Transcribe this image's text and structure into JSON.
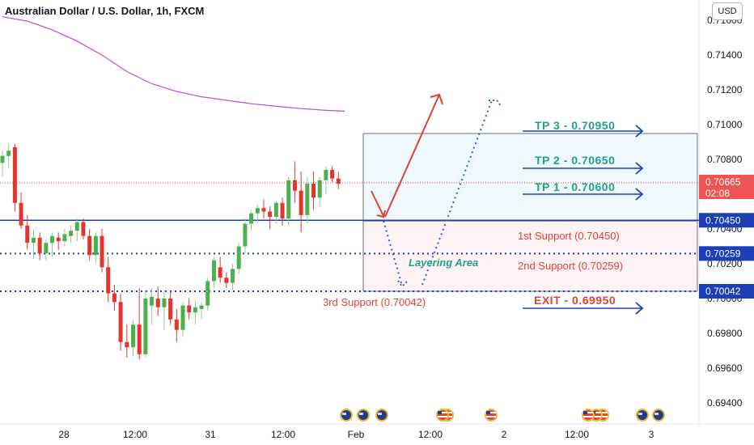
{
  "window": {
    "title": "Australian Dollar / U.S. Dollar, 1h, FXCM",
    "currency_button": "USD"
  },
  "chart_data": {
    "type": "candlestick",
    "title": "Australian Dollar / U.S. Dollar, 1h, FXCM",
    "y_ticks": [
      "0.71600",
      "0.71400",
      "0.71200",
      "0.71000",
      "0.70800",
      "0.70600",
      "0.70400",
      "0.70200",
      "0.70000",
      "0.69800",
      "0.69600",
      "0.69400"
    ],
    "ylim": [
      0.6925,
      0.7165
    ],
    "x_ticks": [
      "28",
      "12:00",
      "31",
      "12:00",
      "Feb",
      "12:00",
      "2",
      "12:00",
      "3"
    ],
    "price_tag": {
      "value": "0.70665",
      "timer": "02:08"
    },
    "levels": [
      {
        "name": "1st Support",
        "label": "1st Support (0.70450)",
        "value": 0.7045,
        "tag": "0.70450",
        "style": "solid"
      },
      {
        "name": "2nd Support",
        "label": "2nd Support (0.70259)",
        "value": 0.70259,
        "tag": "0.70259",
        "style": "dotted"
      },
      {
        "name": "3rd Support",
        "label": "3rd Support (0.70042)",
        "value": 0.70042,
        "tag": "0.70042",
        "style": "dotted"
      }
    ],
    "targets": [
      {
        "label": "TP 3 - 0.70950",
        "value": 0.7095
      },
      {
        "label": "TP 2 - 0.70650",
        "value": 0.7065
      },
      {
        "label": "TP 1 - 0.70600",
        "value": 0.706
      }
    ],
    "exit": {
      "label": "EXIT - 0.69950",
      "value": 0.6995
    },
    "zone_label": "Layering Area",
    "candles": [
      {
        "o": 0.7078,
        "h": 0.7085,
        "l": 0.707,
        "c": 0.7082
      },
      {
        "o": 0.7082,
        "h": 0.7089,
        "l": 0.7075,
        "c": 0.7085
      },
      {
        "o": 0.7087,
        "h": 0.7089,
        "l": 0.705,
        "c": 0.7055
      },
      {
        "o": 0.7055,
        "h": 0.7061,
        "l": 0.704,
        "c": 0.7042
      },
      {
        "o": 0.7042,
        "h": 0.7048,
        "l": 0.7028,
        "c": 0.7032
      },
      {
        "o": 0.7032,
        "h": 0.704,
        "l": 0.7023,
        "c": 0.7035
      },
      {
        "o": 0.7035,
        "h": 0.7038,
        "l": 0.7022,
        "c": 0.7026
      },
      {
        "o": 0.7026,
        "h": 0.7034,
        "l": 0.7022,
        "c": 0.7032
      },
      {
        "o": 0.7032,
        "h": 0.7038,
        "l": 0.7024,
        "c": 0.7036
      },
      {
        "o": 0.7035,
        "h": 0.7038,
        "l": 0.7028,
        "c": 0.7033
      },
      {
        "o": 0.7033,
        "h": 0.704,
        "l": 0.703,
        "c": 0.7037
      },
      {
        "o": 0.7036,
        "h": 0.7042,
        "l": 0.7032,
        "c": 0.7039
      },
      {
        "o": 0.7039,
        "h": 0.7046,
        "l": 0.7033,
        "c": 0.7044
      },
      {
        "o": 0.7044,
        "h": 0.7046,
        "l": 0.7034,
        "c": 0.7036
      },
      {
        "o": 0.7036,
        "h": 0.704,
        "l": 0.7022,
        "c": 0.7025
      },
      {
        "o": 0.7025,
        "h": 0.7038,
        "l": 0.702,
        "c": 0.7036
      },
      {
        "o": 0.7036,
        "h": 0.704,
        "l": 0.7015,
        "c": 0.7018
      },
      {
        "o": 0.7018,
        "h": 0.7024,
        "l": 0.6998,
        "c": 0.7003
      },
      {
        "o": 0.7003,
        "h": 0.7008,
        "l": 0.6993,
        "c": 0.6998
      },
      {
        "o": 0.6998,
        "h": 0.7003,
        "l": 0.697,
        "c": 0.6975
      },
      {
        "o": 0.6975,
        "h": 0.6985,
        "l": 0.6966,
        "c": 0.6972
      },
      {
        "o": 0.6972,
        "h": 0.6988,
        "l": 0.6967,
        "c": 0.6985
      },
      {
        "o": 0.6985,
        "h": 0.7006,
        "l": 0.6965,
        "c": 0.6968
      },
      {
        "o": 0.6968,
        "h": 0.7005,
        "l": 0.6966,
        "c": 0.7
      },
      {
        "o": 0.6996,
        "h": 0.7006,
        "l": 0.6985,
        "c": 0.7001
      },
      {
        "o": 0.7,
        "h": 0.7007,
        "l": 0.699,
        "c": 0.6995
      },
      {
        "o": 0.6995,
        "h": 0.7005,
        "l": 0.6982,
        "c": 0.7
      },
      {
        "o": 0.7,
        "h": 0.7004,
        "l": 0.6985,
        "c": 0.6988
      },
      {
        "o": 0.6988,
        "h": 0.6994,
        "l": 0.6975,
        "c": 0.6982
      },
      {
        "o": 0.6982,
        "h": 0.6998,
        "l": 0.6978,
        "c": 0.6996
      },
      {
        "o": 0.6996,
        "h": 0.7,
        "l": 0.6988,
        "c": 0.6992
      },
      {
        "o": 0.6992,
        "h": 0.6999,
        "l": 0.6985,
        "c": 0.6995
      },
      {
        "o": 0.6994,
        "h": 0.6998,
        "l": 0.6988,
        "c": 0.6996
      },
      {
        "o": 0.6996,
        "h": 0.7012,
        "l": 0.6993,
        "c": 0.701
      },
      {
        "o": 0.701,
        "h": 0.7024,
        "l": 0.7006,
        "c": 0.7022
      },
      {
        "o": 0.7018,
        "h": 0.7024,
        "l": 0.7009,
        "c": 0.7012
      },
      {
        "o": 0.7012,
        "h": 0.7015,
        "l": 0.7006,
        "c": 0.7009
      },
      {
        "o": 0.7009,
        "h": 0.702,
        "l": 0.7005,
        "c": 0.7017
      },
      {
        "o": 0.7017,
        "h": 0.7032,
        "l": 0.7014,
        "c": 0.703
      },
      {
        "o": 0.703,
        "h": 0.7046,
        "l": 0.7026,
        "c": 0.7043
      },
      {
        "o": 0.7043,
        "h": 0.7051,
        "l": 0.7039,
        "c": 0.7049
      },
      {
        "o": 0.7049,
        "h": 0.7054,
        "l": 0.7044,
        "c": 0.7052
      },
      {
        "o": 0.7052,
        "h": 0.7057,
        "l": 0.7046,
        "c": 0.705
      },
      {
        "o": 0.705,
        "h": 0.7053,
        "l": 0.704,
        "c": 0.7047
      },
      {
        "o": 0.7047,
        "h": 0.7056,
        "l": 0.7043,
        "c": 0.7055
      },
      {
        "o": 0.7055,
        "h": 0.7058,
        "l": 0.7042,
        "c": 0.7046
      },
      {
        "o": 0.7046,
        "h": 0.707,
        "l": 0.7042,
        "c": 0.7068
      },
      {
        "o": 0.7068,
        "h": 0.7079,
        "l": 0.7055,
        "c": 0.7062
      },
      {
        "o": 0.7062,
        "h": 0.7073,
        "l": 0.7038,
        "c": 0.7048
      },
      {
        "o": 0.7048,
        "h": 0.707,
        "l": 0.7043,
        "c": 0.7066
      },
      {
        "o": 0.7066,
        "h": 0.7073,
        "l": 0.7051,
        "c": 0.7058
      },
      {
        "o": 0.7058,
        "h": 0.707,
        "l": 0.7053,
        "c": 0.7068
      },
      {
        "o": 0.7068,
        "h": 0.7076,
        "l": 0.706,
        "c": 0.7074
      },
      {
        "o": 0.7074,
        "h": 0.7076,
        "l": 0.7067,
        "c": 0.7069
      },
      {
        "o": 0.7069,
        "h": 0.7073,
        "l": 0.7063,
        "c": 0.7066
      }
    ],
    "ma_line": [
      [
        0,
        0.7162
      ],
      [
        4,
        0.71595
      ],
      [
        8,
        0.71545
      ],
      [
        12,
        0.7148
      ],
      [
        16,
        0.714
      ],
      [
        20,
        0.71305
      ],
      [
        24,
        0.71235
      ],
      [
        28,
        0.7119
      ],
      [
        32,
        0.7116
      ],
      [
        36,
        0.7114
      ],
      [
        40,
        0.7112
      ],
      [
        44,
        0.71105
      ],
      [
        48,
        0.71092
      ],
      [
        52,
        0.71082
      ],
      [
        55,
        0.71077
      ]
    ]
  }
}
